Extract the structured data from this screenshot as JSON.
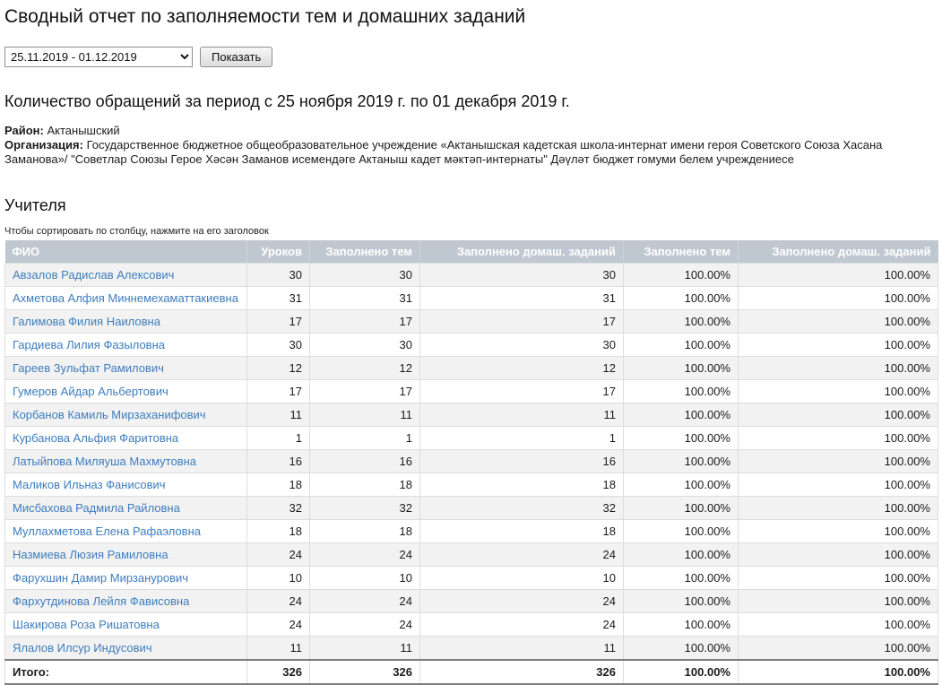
{
  "page": {
    "title": "Сводный отчет по заполняемости тем и домашних заданий"
  },
  "filter": {
    "period_value": "25.11.2019 - 01.12.2019",
    "show_button_label": "Показать"
  },
  "report": {
    "subtitle": "Количество обращений за период с 25 ноября 2019 г. по 01 декабря 2019 г.",
    "district_label": "Район:",
    "district_value": "Актанышский",
    "organization_label": "Организация:",
    "organization_value": "Государственное бюджетное общеобразовательное учреждение «Актанышская кадетская школа-интернат имени героя Советского Союза Хасана Заманова»/ \"Советлар Союзы Герое Хәсән Заманов исемендәге Актаныш кадет мәктәп-интернаты\" Дәүләт бюджет гомуми белем учреждениесе"
  },
  "teachers_section": {
    "heading": "Учителя",
    "sort_hint": "Чтобы сортировать по столбцу, нажмите на его заголовок"
  },
  "table": {
    "columns": [
      "ФИО",
      "Уроков",
      "Заполнено тем",
      "Заполнено домаш. заданий",
      "Заполнено тем",
      "Заполнено домаш. заданий"
    ],
    "rows": [
      {
        "name": "Авзалов Радислав Алексович",
        "lessons": "30",
        "topics": "30",
        "homework": "30",
        "topics_pct": "100.00%",
        "homework_pct": "100.00%"
      },
      {
        "name": "Ахметова Алфия Миннемехаматтакиевна",
        "lessons": "31",
        "topics": "31",
        "homework": "31",
        "topics_pct": "100.00%",
        "homework_pct": "100.00%"
      },
      {
        "name": "Галимова Филия Наиловна",
        "lessons": "17",
        "topics": "17",
        "homework": "17",
        "topics_pct": "100.00%",
        "homework_pct": "100.00%"
      },
      {
        "name": "Гардиева Лилия Фазыловна",
        "lessons": "30",
        "topics": "30",
        "homework": "30",
        "topics_pct": "100.00%",
        "homework_pct": "100.00%"
      },
      {
        "name": "Гареев Зульфат Рамилович",
        "lessons": "12",
        "topics": "12",
        "homework": "12",
        "topics_pct": "100.00%",
        "homework_pct": "100.00%"
      },
      {
        "name": "Гумеров Айдар Альбертович",
        "lessons": "17",
        "topics": "17",
        "homework": "17",
        "topics_pct": "100.00%",
        "homework_pct": "100.00%"
      },
      {
        "name": "Корбанов Камиль Мирзаханифович",
        "lessons": "11",
        "topics": "11",
        "homework": "11",
        "topics_pct": "100.00%",
        "homework_pct": "100.00%"
      },
      {
        "name": "Курбанова Альфия Фаритовна",
        "lessons": "1",
        "topics": "1",
        "homework": "1",
        "topics_pct": "100.00%",
        "homework_pct": "100.00%"
      },
      {
        "name": "Латыйпова Миляуша Махмутовна",
        "lessons": "16",
        "topics": "16",
        "homework": "16",
        "topics_pct": "100.00%",
        "homework_pct": "100.00%"
      },
      {
        "name": "Маликов Ильназ Фанисович",
        "lessons": "18",
        "topics": "18",
        "homework": "18",
        "topics_pct": "100.00%",
        "homework_pct": "100.00%"
      },
      {
        "name": "Мисбахова Радмила Райловна",
        "lessons": "32",
        "topics": "32",
        "homework": "32",
        "topics_pct": "100.00%",
        "homework_pct": "100.00%"
      },
      {
        "name": "Муллахметова Елена Рафаэловна",
        "lessons": "18",
        "topics": "18",
        "homework": "18",
        "topics_pct": "100.00%",
        "homework_pct": "100.00%"
      },
      {
        "name": "Назмиева Люзия Рамиловна",
        "lessons": "24",
        "topics": "24",
        "homework": "24",
        "topics_pct": "100.00%",
        "homework_pct": "100.00%"
      },
      {
        "name": "Фарухшин Дамир Мирзанурович",
        "lessons": "10",
        "topics": "10",
        "homework": "10",
        "topics_pct": "100.00%",
        "homework_pct": "100.00%"
      },
      {
        "name": "Фархутдинова Лейля Фависовна",
        "lessons": "24",
        "topics": "24",
        "homework": "24",
        "topics_pct": "100.00%",
        "homework_pct": "100.00%"
      },
      {
        "name": "Шакирова Роза Ришатовна",
        "lessons": "24",
        "topics": "24",
        "homework": "24",
        "topics_pct": "100.00%",
        "homework_pct": "100.00%"
      },
      {
        "name": "Ялалов Илсур Индусович",
        "lessons": "11",
        "topics": "11",
        "homework": "11",
        "topics_pct": "100.00%",
        "homework_pct": "100.00%"
      }
    ],
    "footer": {
      "label": "Итого:",
      "lessons": "326",
      "topics": "326",
      "homework": "326",
      "topics_pct": "100.00%",
      "homework_pct": "100.00%"
    }
  },
  "colors": {
    "header_bg": "#bfc8d0",
    "header_text": "#ffffff",
    "link_blue": "#3d7dbd",
    "row_alt_bg": "#f2f2f2",
    "row_border": "#dddddd",
    "footer_border": "#7d7d7d"
  }
}
